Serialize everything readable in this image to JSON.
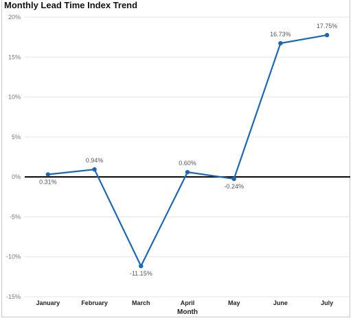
{
  "chart_data": {
    "type": "line",
    "title": "Monthly Lead Time Index Trend",
    "xlabel": "Month",
    "ylabel": "",
    "categories": [
      "January",
      "February",
      "March",
      "April",
      "May",
      "June",
      "July"
    ],
    "series": [
      {
        "values": [
          0.31,
          0.94,
          -11.15,
          0.6,
          -0.24,
          16.73,
          17.75
        ],
        "labels": [
          "0.31%",
          "0.94%",
          "-11.15%",
          "0.60%",
          "-0.24%",
          "16.73%",
          "17.75%"
        ],
        "color": "#1a67b5"
      }
    ],
    "ylim": [
      -15,
      20
    ],
    "yticks": [
      20,
      15,
      10,
      5,
      0,
      -5,
      -10,
      -15
    ],
    "ytick_labels": [
      "20%",
      "15%",
      "10%",
      "5%",
      "0%",
      "-5%",
      "-10%",
      "-15%"
    ],
    "grid": true,
    "zero_line_color": "#000000"
  }
}
